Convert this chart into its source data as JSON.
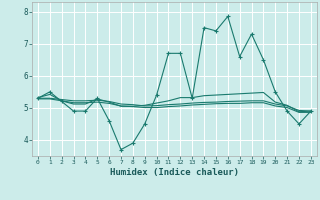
{
  "xlabel": "Humidex (Indice chaleur)",
  "bg_color": "#ccecea",
  "grid_color": "#ffffff",
  "line_color": "#1a7a6e",
  "xlim": [
    -0.5,
    23.5
  ],
  "ylim": [
    3.5,
    8.3
  ],
  "xticks": [
    0,
    1,
    2,
    3,
    4,
    5,
    6,
    7,
    8,
    9,
    10,
    11,
    12,
    13,
    14,
    15,
    16,
    17,
    18,
    19,
    20,
    21,
    22,
    23
  ],
  "yticks": [
    4,
    5,
    6,
    7,
    8
  ],
  "line1_x": [
    0,
    1,
    2,
    3,
    4,
    5,
    6,
    7,
    8,
    9,
    10,
    11,
    12,
    13,
    14,
    15,
    16,
    17,
    18,
    19,
    20,
    21,
    22,
    23
  ],
  "line1_y": [
    5.3,
    5.5,
    5.2,
    4.9,
    4.9,
    5.3,
    4.6,
    3.7,
    3.9,
    4.5,
    5.4,
    6.7,
    6.7,
    5.3,
    7.5,
    7.4,
    7.85,
    6.6,
    7.3,
    6.5,
    5.5,
    4.9,
    4.5,
    4.9
  ],
  "line2_x": [
    0,
    1,
    2,
    3,
    4,
    5,
    6,
    7,
    8,
    9,
    10,
    11,
    12,
    13,
    14,
    15,
    16,
    17,
    18,
    19,
    20,
    21,
    22,
    23
  ],
  "line2_y": [
    5.32,
    5.42,
    5.22,
    5.12,
    5.12,
    5.28,
    5.18,
    5.05,
    5.05,
    5.08,
    5.15,
    5.22,
    5.32,
    5.32,
    5.38,
    5.4,
    5.42,
    5.44,
    5.46,
    5.48,
    5.18,
    5.08,
    4.88,
    4.9
  ],
  "line3_x": [
    0,
    1,
    2,
    3,
    4,
    5,
    6,
    7,
    8,
    9,
    10,
    11,
    12,
    13,
    14,
    15,
    16,
    17,
    18,
    19,
    20,
    21,
    22,
    23
  ],
  "line3_y": [
    5.28,
    5.28,
    5.22,
    5.16,
    5.16,
    5.18,
    5.14,
    5.06,
    5.04,
    5.01,
    5.01,
    5.04,
    5.06,
    5.09,
    5.11,
    5.13,
    5.14,
    5.14,
    5.16,
    5.16,
    5.06,
    5.01,
    4.86,
    4.86
  ],
  "line4_x": [
    0,
    1,
    2,
    3,
    4,
    5,
    6,
    7,
    8,
    9,
    10,
    11,
    12,
    13,
    14,
    15,
    16,
    17,
    18,
    19,
    20,
    21,
    22,
    23
  ],
  "line4_y": [
    5.3,
    5.3,
    5.26,
    5.22,
    5.22,
    5.24,
    5.2,
    5.12,
    5.1,
    5.06,
    5.07,
    5.1,
    5.12,
    5.15,
    5.17,
    5.18,
    5.2,
    5.21,
    5.22,
    5.22,
    5.12,
    5.06,
    4.92,
    4.9
  ]
}
